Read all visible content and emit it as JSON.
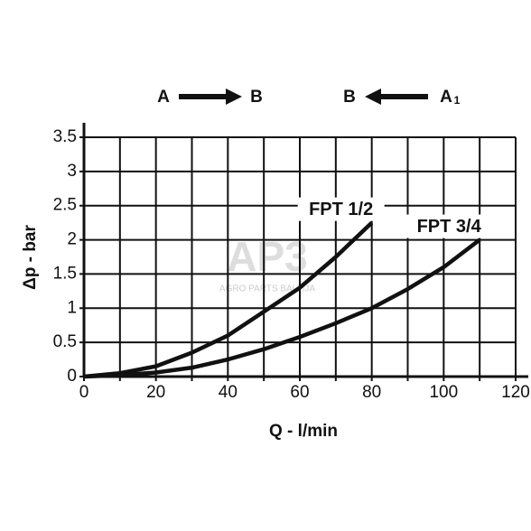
{
  "chart_data": {
    "type": "line",
    "x_label": "Q - l/min",
    "y_label": "Δp - bar",
    "flow_left": {
      "from": "A",
      "to": "B"
    },
    "flow_right": {
      "from": "A",
      "sub": "1",
      "to": "B"
    },
    "watermark": {
      "logo": "AP3",
      "text": "AGRO PARTS BALTIJA"
    },
    "x": [
      0,
      10,
      20,
      30,
      40,
      50,
      60,
      70,
      80,
      90,
      100,
      110
    ],
    "series": [
      {
        "name": "FPT 1/2",
        "color": "#111111",
        "values": [
          0,
          0.05,
          0.15,
          0.35,
          0.6,
          0.95,
          1.3,
          1.75,
          2.25,
          null,
          null,
          null
        ]
      },
      {
        "name": "FPT 3/4",
        "color": "#111111",
        "values": [
          0,
          0.02,
          0.06,
          0.13,
          0.25,
          0.4,
          0.58,
          0.78,
          1.0,
          1.28,
          1.6,
          2.0
        ]
      }
    ],
    "xlim": [
      0,
      120
    ],
    "ylim": [
      0,
      3.5
    ],
    "xticks": [
      0,
      20,
      40,
      60,
      80,
      100,
      120
    ],
    "x_minor_ticks": [
      10,
      30,
      50,
      70,
      90,
      110
    ],
    "yticks": [
      0,
      0.5,
      1,
      1.5,
      2,
      2.5,
      3,
      3.5
    ],
    "grid": true
  }
}
